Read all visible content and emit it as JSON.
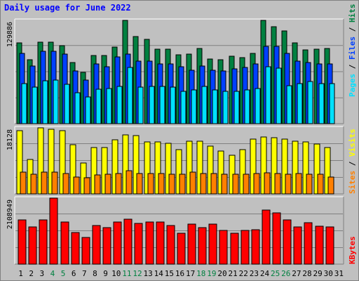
{
  "title": "Daily usage for June 2022",
  "colors": {
    "hits": "#008040",
    "files": "#0040ff",
    "pages": "#00e0ff",
    "visits": "#ffff00",
    "sites": "#ff8000",
    "kbytes": "#ff0000",
    "weekend": "#008040",
    "weekday": "#000000"
  },
  "chart_data": [
    {
      "type": "bar",
      "panel": "hits-files-pages",
      "ylabel": [
        "Pages",
        "Files",
        "Hits"
      ],
      "ymax_label": "129886",
      "ylim": [
        0,
        129886
      ],
      "grid": true,
      "categories": [
        "1",
        "2",
        "3",
        "4",
        "5",
        "6",
        "7",
        "8",
        "9",
        "10",
        "11",
        "12",
        "13",
        "14",
        "15",
        "16",
        "17",
        "18",
        "19",
        "20",
        "21",
        "22",
        "23",
        "24",
        "25",
        "26",
        "27",
        "28",
        "29",
        "30",
        "31"
      ],
      "series": [
        {
          "name": "Hits",
          "values": [
            101700,
            80700,
            102800,
            102800,
            98200,
            77200,
            65600,
            85900,
            85900,
            96400,
            129900,
            110100,
            106700,
            93800,
            93800,
            86800,
            88000,
            95300,
            81800,
            80700,
            85300,
            84100,
            88800,
            129900,
            121700,
            117000,
            101700,
            93300,
            94500,
            95300,
            0
          ]
        },
        {
          "name": "Files",
          "values": [
            88800,
            73400,
            91100,
            91100,
            88000,
            66700,
            56200,
            75900,
            72300,
            84700,
            87700,
            79600,
            79600,
            75900,
            75900,
            72300,
            67800,
            73400,
            67800,
            66700,
            70000,
            71100,
            75900,
            97600,
            97600,
            88800,
            79600,
            77200,
            76000,
            76000,
            0
          ]
        },
        {
          "name": "Pages",
          "values": [
            51400,
            46700,
            54900,
            56200,
            50500,
            40000,
            35300,
            44300,
            45500,
            47900,
            71100,
            46700,
            48000,
            48000,
            46700,
            42000,
            43200,
            47800,
            43200,
            42000,
            42000,
            43200,
            45500,
            72400,
            70200,
            49100,
            51500,
            53700,
            51500,
            51500,
            0
          ]
        }
      ]
    },
    {
      "type": "bar",
      "panel": "visits-sites",
      "ylabel": [
        "Sites",
        "Visits"
      ],
      "ymax_label": "18128",
      "ylim": [
        0,
        18128
      ],
      "grid": true,
      "categories": [
        "1",
        "2",
        "3",
        "4",
        "5",
        "6",
        "7",
        "8",
        "9",
        "10",
        "11",
        "12",
        "13",
        "14",
        "15",
        "16",
        "17",
        "18",
        "19",
        "20",
        "21",
        "22",
        "23",
        "24",
        "25",
        "26",
        "27",
        "28",
        "29",
        "30",
        "31"
      ],
      "series": [
        {
          "name": "Visits",
          "values": [
            17400,
            9600,
            18100,
            17700,
            17300,
            13600,
            8700,
            12900,
            12900,
            14900,
            16200,
            16000,
            14300,
            14300,
            13900,
            12300,
            14600,
            14500,
            13300,
            11900,
            10700,
            12300,
            15100,
            15700,
            15400,
            15200,
            14600,
            14400,
            13700,
            12800,
            0
          ]
        },
        {
          "name": "Sites",
          "values": [
            6200,
            5700,
            6200,
            6200,
            5900,
            5000,
            4800,
            5400,
            5700,
            5900,
            6600,
            5900,
            5900,
            5900,
            5600,
            5600,
            6200,
            5900,
            5900,
            5600,
            5700,
            5700,
            5900,
            6100,
            5900,
            5700,
            5900,
            5600,
            5700,
            5000,
            0
          ]
        }
      ]
    },
    {
      "type": "bar",
      "panel": "kbytes",
      "ylabel": [
        "KBytes"
      ],
      "ymax_label": "2108949",
      "ylim": [
        0,
        2108949
      ],
      "grid": true,
      "categories": [
        "1",
        "2",
        "3",
        "4",
        "5",
        "6",
        "7",
        "8",
        "9",
        "10",
        "11",
        "12",
        "13",
        "14",
        "15",
        "16",
        "17",
        "18",
        "19",
        "20",
        "21",
        "22",
        "23",
        "24",
        "25",
        "26",
        "27",
        "28",
        "29",
        "30",
        "31"
      ],
      "series": [
        {
          "name": "KBytes",
          "values": [
            1420000,
            1200000,
            1420000,
            2110000,
            1370000,
            1040000,
            880000,
            1250000,
            1190000,
            1370000,
            1460000,
            1310000,
            1370000,
            1370000,
            1250000,
            1000000,
            1290000,
            1190000,
            1290000,
            1090000,
            1010000,
            1090000,
            1120000,
            1740000,
            1650000,
            1420000,
            1200000,
            1350000,
            1240000,
            1200000,
            0
          ]
        }
      ]
    }
  ],
  "xticks": [
    {
      "label": "1",
      "weekend": false
    },
    {
      "label": "2",
      "weekend": false
    },
    {
      "label": "3",
      "weekend": false
    },
    {
      "label": "4",
      "weekend": true
    },
    {
      "label": "5",
      "weekend": true
    },
    {
      "label": "6",
      "weekend": false
    },
    {
      "label": "7",
      "weekend": false
    },
    {
      "label": "8",
      "weekend": false
    },
    {
      "label": "9",
      "weekend": false
    },
    {
      "label": "10",
      "weekend": false
    },
    {
      "label": "11",
      "weekend": true
    },
    {
      "label": "12",
      "weekend": true
    },
    {
      "label": "13",
      "weekend": false
    },
    {
      "label": "14",
      "weekend": false
    },
    {
      "label": "15",
      "weekend": false
    },
    {
      "label": "16",
      "weekend": false
    },
    {
      "label": "17",
      "weekend": false
    },
    {
      "label": "18",
      "weekend": true
    },
    {
      "label": "19",
      "weekend": true
    },
    {
      "label": "20",
      "weekend": false
    },
    {
      "label": "21",
      "weekend": false
    },
    {
      "label": "22",
      "weekend": false
    },
    {
      "label": "23",
      "weekend": false
    },
    {
      "label": "24",
      "weekend": false
    },
    {
      "label": "25",
      "weekend": true
    },
    {
      "label": "26",
      "weekend": true
    },
    {
      "label": "27",
      "weekend": false
    },
    {
      "label": "28",
      "weekend": false
    },
    {
      "label": "29",
      "weekend": false
    },
    {
      "label": "30",
      "weekend": false
    },
    {
      "label": "31",
      "weekend": false
    }
  ]
}
